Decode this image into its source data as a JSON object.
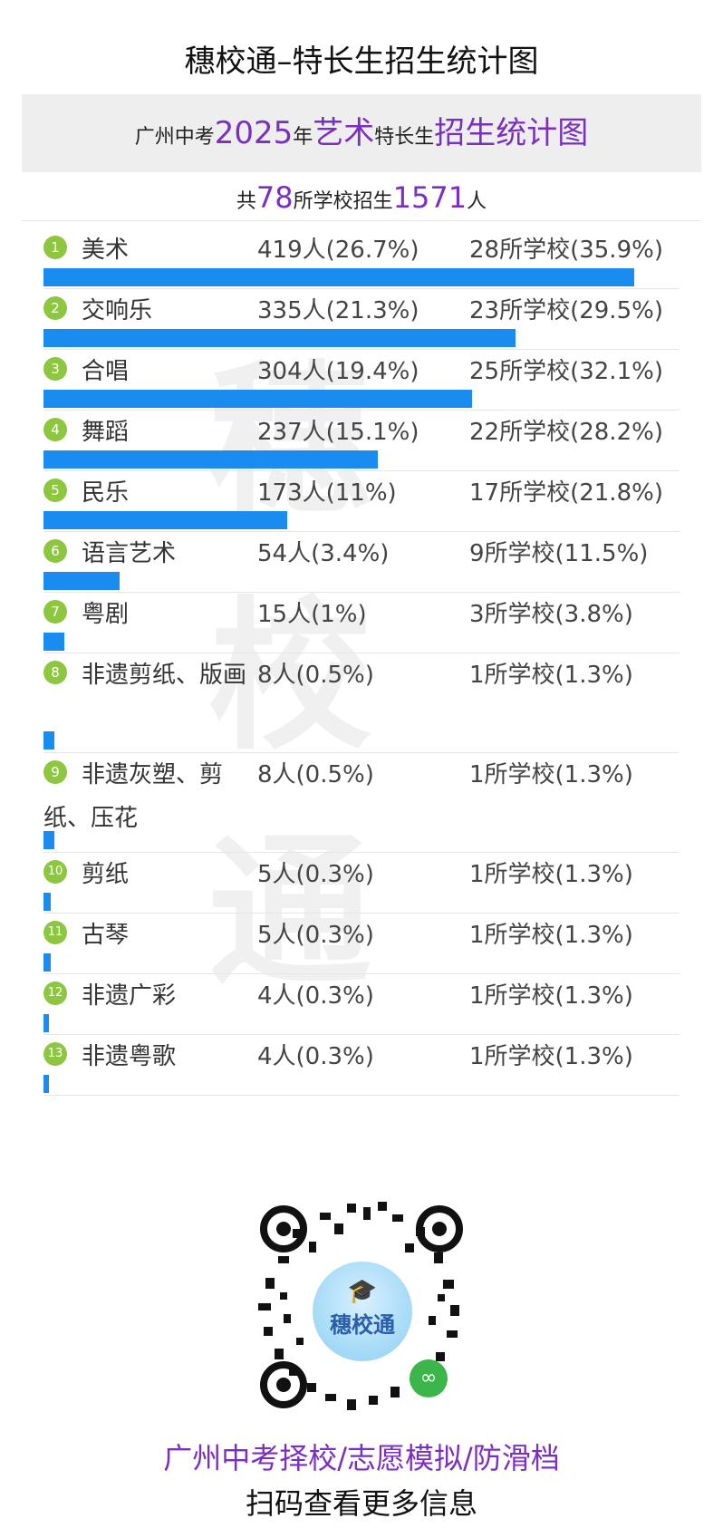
{
  "app_title": "穗校通–特长生招生统计图",
  "banner": {
    "prefix": "广州中考",
    "year": "2025",
    "year_suffix": "年",
    "category": "艺术",
    "middle": "特长生",
    "suffix": "招生统计图"
  },
  "summary": {
    "prefix": "共",
    "schools": "78",
    "middle": "所学校招生",
    "students": "1571",
    "suffix": "人"
  },
  "watermark": [
    "穗",
    "校",
    "通"
  ],
  "chart_data": {
    "type": "bar",
    "orientation": "horizontal",
    "title": "广州中考2025年艺术特长生招生统计图",
    "total_schools": 78,
    "total_students": 1571,
    "categories": [
      "美术",
      "交响乐",
      "合唱",
      "舞蹈",
      "民乐",
      "语言艺术",
      "粤剧",
      "非遗剪纸、版画",
      "非遗灰塑、剪纸、压花",
      "剪纸",
      "古琴",
      "非遗广彩",
      "非遗粤歌"
    ],
    "series": [
      {
        "values": [
          419,
          335,
          304,
          237,
          173,
          54,
          15,
          8,
          8,
          5,
          5,
          4,
          4
        ]
      }
    ],
    "rows": [
      {
        "rank": "1",
        "name": "美术",
        "students": 419,
        "students_text": "419人(26.7%)",
        "schools": 28,
        "schools_text": "28所学校(35.9%)"
      },
      {
        "rank": "2",
        "name": "交响乐",
        "students": 335,
        "students_text": "335人(21.3%)",
        "schools": 23,
        "schools_text": "23所学校(29.5%)"
      },
      {
        "rank": "3",
        "name": "合唱",
        "students": 304,
        "students_text": "304人(19.4%)",
        "schools": 25,
        "schools_text": "25所学校(32.1%)"
      },
      {
        "rank": "4",
        "name": "舞蹈",
        "students": 237,
        "students_text": "237人(15.1%)",
        "schools": 22,
        "schools_text": "22所学校(28.2%)"
      },
      {
        "rank": "5",
        "name": "民乐",
        "students": 173,
        "students_text": "173人(11%)",
        "schools": 17,
        "schools_text": "17所学校(21.8%)"
      },
      {
        "rank": "6",
        "name": "语言艺术",
        "students": 54,
        "students_text": "54人(3.4%)",
        "schools": 9,
        "schools_text": "9所学校(11.5%)"
      },
      {
        "rank": "7",
        "name": "粤剧",
        "students": 15,
        "students_text": "15人(1%)",
        "schools": 3,
        "schools_text": "3所学校(3.8%)"
      },
      {
        "rank": "8",
        "name": "非遗剪纸、版画",
        "students": 8,
        "students_text": "8人(0.5%)",
        "schools": 1,
        "schools_text": "1所学校(1.3%)"
      },
      {
        "rank": "9",
        "name": "非遗灰塑、剪纸、压花",
        "students": 8,
        "students_text": "8人(0.5%)",
        "schools": 1,
        "schools_text": "1所学校(1.3%)"
      },
      {
        "rank": "10",
        "name": "剪纸",
        "students": 5,
        "students_text": "5人(0.3%)",
        "schools": 1,
        "schools_text": "1所学校(1.3%)"
      },
      {
        "rank": "11",
        "name": "古琴",
        "students": 5,
        "students_text": "5人(0.3%)",
        "schools": 1,
        "schools_text": "1所学校(1.3%)"
      },
      {
        "rank": "12",
        "name": "非遗广彩",
        "students": 4,
        "students_text": "4人(0.3%)",
        "schools": 1,
        "schools_text": "1所学校(1.3%)"
      },
      {
        "rank": "13",
        "name": "非遗粤歌",
        "students": 4,
        "students_text": "4人(0.3%)",
        "schools": 1,
        "schools_text": "1所学校(1.3%)"
      }
    ],
    "bar_color": "#1a8cf0",
    "rank_badge_color": "#8dc63f",
    "grid": false
  },
  "colors": {
    "highlight": "#7b2fbf",
    "bar": "#1a8cf0",
    "badge": "#8dc63f"
  },
  "qr": {
    "logo_text": "穗校通",
    "logo_icon": "graduation-cap-icon",
    "badge_icon": "mini-program-icon"
  },
  "footer": {
    "promo": "广州中考择校/志愿模拟/防滑档",
    "scan": "扫码查看更多信息"
  }
}
